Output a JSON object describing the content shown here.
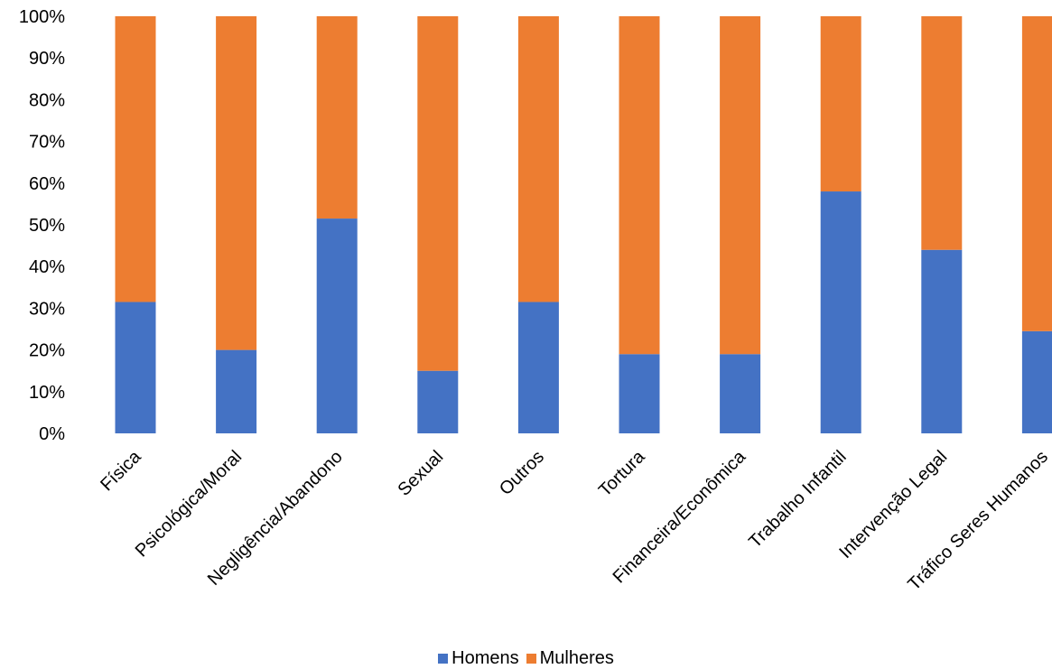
{
  "chart_data": {
    "type": "bar",
    "stacked": true,
    "percent": true,
    "categories": [
      "Física",
      "Psicológica/Moral",
      "Negligência/Abandono",
      "Sexual",
      "Outros",
      "Tortura",
      "Financeira/Econômica",
      "Trabalho Infantil",
      "Intervenção Legal",
      "Tráfico Seres Humanos"
    ],
    "series": [
      {
        "name": "Homens",
        "color": "#4472C4",
        "values": [
          31.5,
          20,
          51.5,
          15,
          31.5,
          19,
          19,
          58,
          44,
          24.5
        ]
      },
      {
        "name": "Mulheres",
        "color": "#ED7D31",
        "values": [
          68.5,
          80,
          48.5,
          85,
          68.5,
          81,
          81,
          42,
          56,
          75.5
        ]
      }
    ],
    "yticks": [
      "0%",
      "10%",
      "20%",
      "30%",
      "40%",
      "50%",
      "60%",
      "70%",
      "80%",
      "90%",
      "100%"
    ],
    "ylim": [
      0,
      100
    ],
    "grid": false,
    "legend_position": "bottom"
  }
}
